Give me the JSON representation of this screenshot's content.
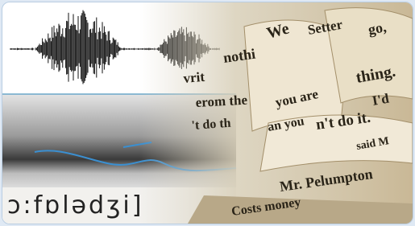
{
  "transcription": "ɔ:fɒlədʒi]",
  "page_text": [
    "We",
    "Setter",
    "nothi",
    "go,",
    "vrit",
    "thing.",
    "erom the",
    "you are",
    "I'd",
    "'t do th",
    "an you",
    "n't do it.",
    "said M",
    "Mr. Pelumpton",
    "Costs money"
  ]
}
